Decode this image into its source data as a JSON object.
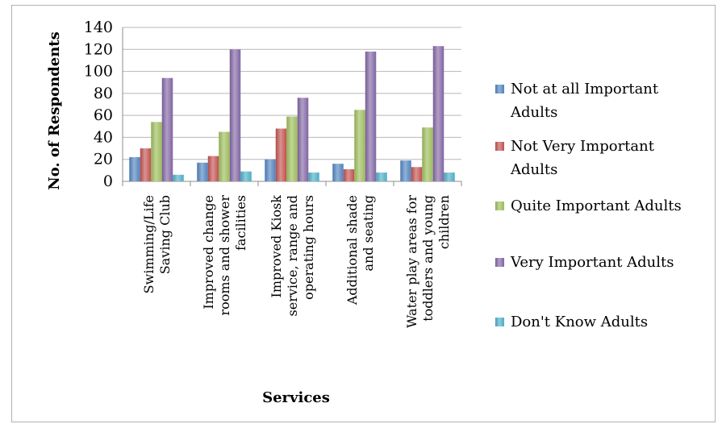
{
  "chart_data": {
    "type": "bar",
    "title": "",
    "xlabel": "Services",
    "ylabel": "No. of Respondents",
    "ylim": [
      0,
      140
    ],
    "yticks": [
      0,
      20,
      40,
      60,
      80,
      100,
      120,
      140
    ],
    "grid": true,
    "legend_position": "right",
    "categories": [
      [
        "Swimming/Life",
        "Saving Club"
      ],
      [
        "Improved change",
        "rooms and shower",
        "facilities"
      ],
      [
        "Improved Kiosk",
        "service, range and",
        "operating hours"
      ],
      [
        "Additional shade",
        "and seating"
      ],
      [
        "Water play areas for",
        "toddlers and young",
        "children"
      ]
    ],
    "series": [
      {
        "name": [
          "Not at all Important",
          "Adults"
        ],
        "color": "#4f81bd",
        "values": [
          22,
          17,
          20,
          16,
          19
        ]
      },
      {
        "name": [
          "Not Very Important",
          "Adults"
        ],
        "color": "#c0504d",
        "values": [
          30,
          23,
          48,
          11,
          13
        ]
      },
      {
        "name": [
          "Quite Important Adults"
        ],
        "color": "#9bbb59",
        "values": [
          54,
          45,
          59,
          65,
          49
        ]
      },
      {
        "name": [
          "Very Important Adults"
        ],
        "color": "#8064a2",
        "values": [
          94,
          120,
          76,
          118,
          123
        ]
      },
      {
        "name": [
          "Don't Know Adults"
        ],
        "color": "#4bacc6",
        "values": [
          6,
          9,
          8,
          8,
          8
        ]
      }
    ]
  }
}
